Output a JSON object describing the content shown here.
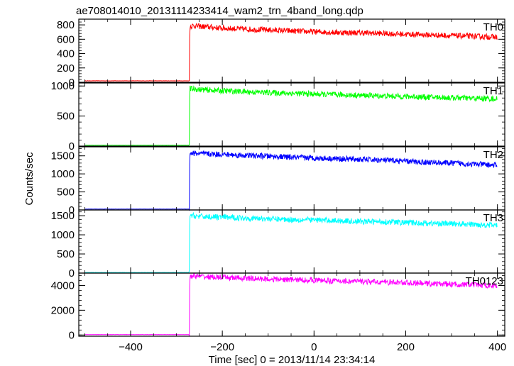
{
  "chart_data": {
    "type": "line",
    "title": "ae708014010_20131114233414_wam2_trn_4band_long.qdp",
    "xlabel": "Time [sec] 0 = 2013/11/14 23:34:14",
    "ylabel": "Counts/sec",
    "xlim": [
      -513,
      416
    ],
    "x_ticks": [
      -400,
      -200,
      0,
      200,
      400
    ],
    "x_tick_labels": [
      "−400",
      "−200",
      "0",
      "200",
      "400"
    ],
    "onset_x": -272,
    "grid": false,
    "panels": [
      {
        "name": "TH0",
        "color": "#ff0000",
        "ylim": [
          0,
          880
        ],
        "y_ticks": [
          0,
          200,
          400,
          600,
          800
        ],
        "y_tick_labels": [
          "0",
          "200",
          "400",
          "600",
          "800"
        ],
        "x": [
          -500,
          -272,
          -271,
          -265,
          -250,
          -200,
          -150,
          -100,
          -50,
          0,
          50,
          100,
          150,
          200,
          250,
          300,
          350,
          400
        ],
        "values": [
          20,
          20,
          780,
          790,
          780,
          755,
          740,
          730,
          715,
          705,
          695,
          690,
          680,
          670,
          660,
          650,
          640,
          630
        ]
      },
      {
        "name": "TH1",
        "color": "#00ff00",
        "ylim": [
          0,
          1050
        ],
        "y_ticks": [
          0,
          500,
          1000
        ],
        "y_tick_labels": [
          "0",
          "500",
          "1000"
        ],
        "x": [
          -500,
          -272,
          -271,
          -265,
          -250,
          -200,
          -150,
          -100,
          -50,
          0,
          50,
          100,
          150,
          200,
          250,
          300,
          350,
          400
        ],
        "values": [
          15,
          15,
          960,
          950,
          940,
          920,
          905,
          890,
          880,
          865,
          855,
          845,
          835,
          825,
          815,
          805,
          795,
          785
        ]
      },
      {
        "name": "TH2",
        "color": "#0000ff",
        "ylim": [
          0,
          1750
        ],
        "y_ticks": [
          0,
          500,
          1000,
          1500
        ],
        "y_tick_labels": [
          "0",
          "500",
          "1000",
          "1500"
        ],
        "x": [
          -500,
          -272,
          -271,
          -265,
          -250,
          -200,
          -150,
          -100,
          -50,
          0,
          50,
          100,
          150,
          200,
          250,
          300,
          350,
          400
        ],
        "values": [
          25,
          25,
          1580,
          1570,
          1560,
          1540,
          1510,
          1490,
          1460,
          1440,
          1420,
          1400,
          1380,
          1350,
          1320,
          1300,
          1270,
          1240
        ]
      },
      {
        "name": "TH3",
        "color": "#00ffff",
        "ylim": [
          0,
          1650
        ],
        "y_ticks": [
          0,
          500,
          1000,
          1500
        ],
        "y_tick_labels": [
          "0",
          "500",
          "1000",
          "1500"
        ],
        "x": [
          -500,
          -272,
          -271,
          -265,
          -250,
          -200,
          -150,
          -100,
          -50,
          0,
          50,
          100,
          150,
          200,
          250,
          300,
          350,
          400
        ],
        "values": [
          15,
          15,
          1510,
          1500,
          1480,
          1460,
          1440,
          1420,
          1400,
          1390,
          1370,
          1350,
          1340,
          1320,
          1300,
          1290,
          1270,
          1250
        ]
      },
      {
        "name": "TH0123",
        "color": "#ff00ff",
        "ylim": [
          -100,
          5000
        ],
        "y_ticks": [
          0,
          2000,
          4000
        ],
        "y_tick_labels": [
          "0",
          "2000",
          "4000"
        ],
        "x": [
          -500,
          -272,
          -271,
          -265,
          -250,
          -200,
          -150,
          -100,
          -50,
          0,
          50,
          100,
          150,
          200,
          250,
          300,
          350,
          400
        ],
        "values": [
          30,
          30,
          4800,
          4770,
          4720,
          4640,
          4580,
          4520,
          4470,
          4420,
          4370,
          4320,
          4270,
          4220,
          4160,
          4100,
          4040,
          3980
        ]
      }
    ]
  }
}
